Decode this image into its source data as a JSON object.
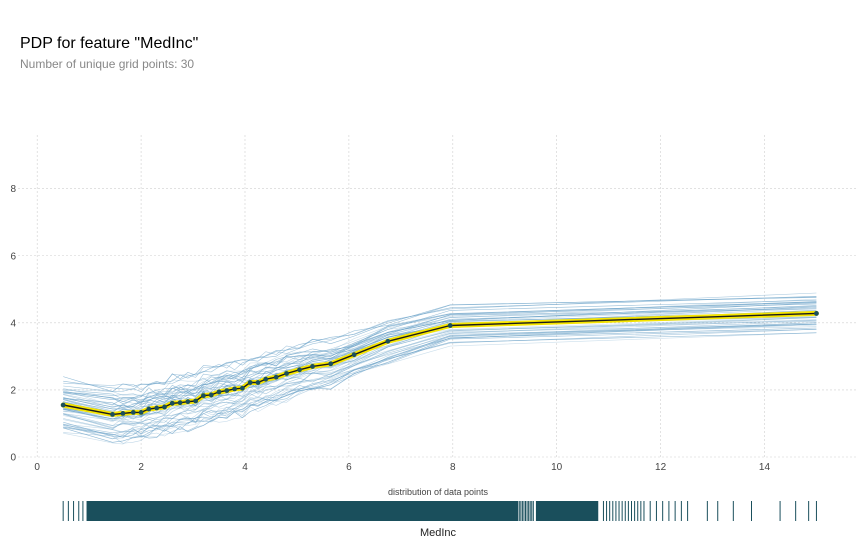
{
  "title": "PDP for feature \"MedInc\"",
  "subtitle": "Number of unique grid points: 30",
  "chart_data": {
    "type": "line",
    "xlabel": "MedInc",
    "distribution_label": "distribution of data points",
    "xlim": [
      -0.1,
      15.8
    ],
    "ylim": [
      0,
      9.6
    ],
    "xticks": [
      0,
      2,
      4,
      6,
      8,
      10,
      12,
      14
    ],
    "yticks": [
      0,
      2,
      4,
      6,
      8
    ],
    "grid": true,
    "colors": {
      "pdp_line": "#1a1a1a",
      "pdp_band": "#f5e400",
      "markers": "#1a4f5c",
      "ice_lines": "#6ea4c9",
      "distribution": "#1a4f5c"
    },
    "series": [
      {
        "x": [
          0.5,
          1.45,
          1.65,
          1.85,
          2.0,
          2.15,
          2.3,
          2.45,
          2.6,
          2.75,
          2.9,
          3.05,
          3.2,
          3.35,
          3.5,
          3.65,
          3.8,
          3.95,
          4.1,
          4.25,
          4.4,
          4.6,
          4.8,
          5.05,
          5.3,
          5.65,
          6.1,
          6.75,
          7.95,
          15.0
        ],
        "values": [
          1.55,
          1.27,
          1.3,
          1.33,
          1.33,
          1.43,
          1.46,
          1.49,
          1.6,
          1.62,
          1.65,
          1.67,
          1.83,
          1.85,
          1.94,
          1.98,
          2.03,
          2.05,
          2.22,
          2.22,
          2.32,
          2.38,
          2.49,
          2.6,
          2.7,
          2.78,
          3.05,
          3.45,
          3.92,
          4.28
        ]
      }
    ]
  }
}
